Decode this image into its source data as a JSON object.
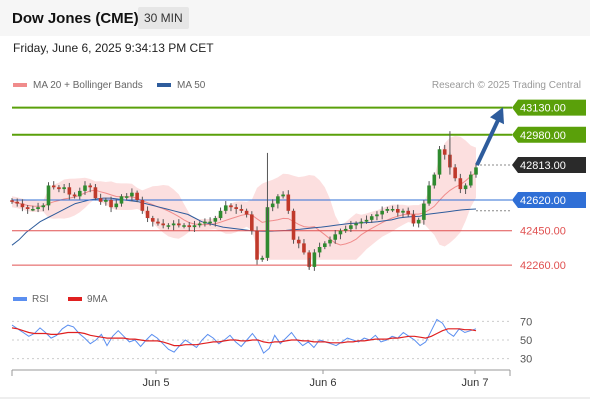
{
  "header": {
    "title": "Dow Jones (CME)",
    "timeframe": "30 MIN"
  },
  "subtitle": "Friday, June 6, 2025 9:34:13 PM CET",
  "legend": {
    "ma20": {
      "label": "MA 20 + Bollinger Bands",
      "color": "#f08c8c"
    },
    "ma50": {
      "label": "MA 50",
      "color": "#2e5c9c"
    }
  },
  "credit": "Research © 2025 Trading Central",
  "chart_data": [
    {
      "type": "line",
      "title": "Dow Jones (CME) 30 MIN",
      "ylim": [
        42150,
        43200
      ],
      "x_labels": [
        "Jun 5",
        "Jun 6",
        "Jun 7"
      ],
      "levels": [
        {
          "value": 43130,
          "label": "43130.00",
          "kind": "resistance",
          "color": "#5aa00a"
        },
        {
          "value": 42980,
          "label": "42980.00",
          "kind": "resistance",
          "color": "#5aa00a"
        },
        {
          "value": 42813,
          "label": "42813.00",
          "kind": "last",
          "color": "#2a2a2a"
        },
        {
          "value": 42620,
          "label": "42620.00",
          "kind": "pivot",
          "color": "#2f6fd6"
        },
        {
          "value": 42450,
          "label": "42450.00",
          "kind": "support",
          "color": "#e05050"
        },
        {
          "value": 42260,
          "label": "42260.00",
          "kind": "support",
          "color": "#e05050"
        }
      ],
      "price_series": [
        42610,
        42600,
        42580,
        42570,
        42570,
        42580,
        42590,
        42700,
        42690,
        42680,
        42690,
        42650,
        42640,
        42670,
        42700,
        42690,
        42630,
        42610,
        42620,
        42580,
        42600,
        42640,
        42640,
        42660,
        42620,
        42560,
        42520,
        42500,
        42490,
        42480,
        42480,
        42490,
        42480,
        42480,
        42470,
        42480,
        42490,
        42500,
        42500,
        42520,
        42560,
        42590,
        42580,
        42570,
        42560,
        42540,
        42450,
        42290,
        42300,
        42580,
        42600,
        42640,
        42650,
        42560,
        42400,
        42380,
        42330,
        42250,
        42330,
        42360,
        42380,
        42400,
        42430,
        42450,
        42460,
        42480,
        42490,
        42500,
        42510,
        42530,
        42540,
        42560,
        42570,
        42570,
        42550,
        42560,
        42540,
        42490,
        42510,
        42600,
        42700,
        42760,
        42900,
        42870,
        42800,
        42740,
        42680,
        42700,
        42760,
        42800
      ],
      "ma50_series": [
        42370,
        42400,
        42440,
        42470,
        42500,
        42520,
        42540,
        42560,
        42580,
        42600,
        42610,
        42620,
        42625,
        42630,
        42630,
        42625,
        42620,
        42615,
        42610,
        42600,
        42590,
        42580,
        42570,
        42560,
        42550,
        42540,
        42520,
        42500,
        42490,
        42480,
        42470,
        42465,
        42460,
        42455,
        42450,
        42448,
        42447,
        42448,
        42450,
        42452,
        42455,
        42458,
        42462,
        42466,
        42470,
        42475,
        42480,
        42485,
        42490,
        42492,
        42494,
        42496,
        42500,
        42505,
        42510,
        42520,
        42525,
        42528,
        42530,
        42540,
        42545,
        42550,
        42555,
        42560,
        42565,
        42568,
        42570
      ],
      "bollinger": {
        "upper_max": 42980,
        "lower_min": 42290
      }
    },
    {
      "type": "line",
      "title": "",
      "legend": [
        {
          "name": "RSI",
          "color": "#5b8ff0"
        },
        {
          "name": "9MA",
          "color": "#e02020"
        }
      ],
      "ylim": [
        20,
        80
      ],
      "yticks": [
        "70",
        "50",
        "30"
      ],
      "guide_values": [
        70,
        50,
        30
      ],
      "rsi_series": [
        66,
        62,
        58,
        54,
        57,
        63,
        58,
        52,
        55,
        62,
        66,
        64,
        57,
        52,
        46,
        50,
        56,
        44,
        54,
        60,
        54,
        48,
        50,
        43,
        50,
        56,
        52,
        46,
        40,
        37,
        44,
        50,
        46,
        42,
        50,
        56,
        52,
        46,
        50,
        55,
        48,
        43,
        50,
        57,
        49,
        36,
        41,
        55,
        46,
        52,
        58,
        50,
        44,
        48,
        42,
        50,
        48,
        46,
        44,
        48,
        52,
        50,
        48,
        52,
        50,
        55,
        48,
        50,
        54,
        52,
        58,
        54,
        50,
        44,
        48,
        60,
        72,
        68,
        58,
        54,
        62,
        58,
        60,
        62
      ],
      "ma9_series": [
        63,
        62,
        60,
        58,
        57,
        57,
        57,
        56,
        56,
        57,
        58,
        58,
        58,
        57,
        55,
        54,
        53,
        52,
        52,
        52,
        52,
        51,
        51,
        50,
        49,
        49,
        49,
        48,
        46,
        44,
        44,
        45,
        45,
        45,
        46,
        47,
        48,
        48,
        49,
        50,
        50,
        49,
        49,
        50,
        50,
        48,
        47,
        48,
        48,
        49,
        50,
        50,
        49,
        49,
        48,
        48,
        48,
        47,
        47,
        47,
        48,
        48,
        49,
        49,
        50,
        51,
        51,
        51,
        52,
        52,
        53,
        54,
        54,
        53,
        52,
        54,
        57,
        60,
        62,
        62,
        62,
        61,
        61,
        60
      ]
    }
  ]
}
